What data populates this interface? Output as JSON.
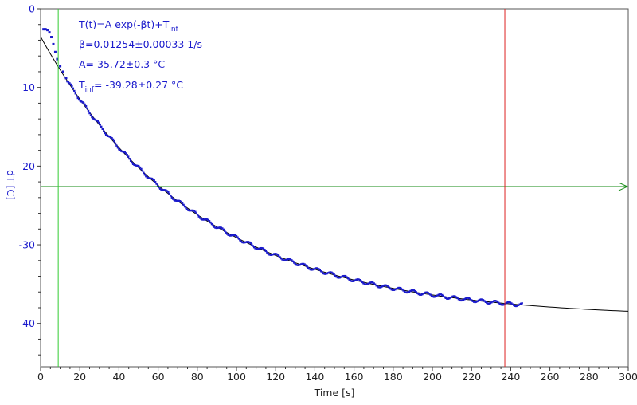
{
  "chart_data": {
    "type": "scatter",
    "xlabel": "Time [s]",
    "ylabel": "dT [C]",
    "xlim": [
      0,
      300
    ],
    "ylim": [
      -45.5,
      0
    ],
    "xticks": [
      0,
      20,
      40,
      60,
      80,
      100,
      120,
      140,
      160,
      180,
      200,
      220,
      240,
      260,
      280,
      300
    ],
    "yticks": [
      0,
      -10,
      -20,
      -30,
      -40
    ],
    "x_tick_labels": [
      "0",
      "20",
      "40",
      "60",
      "80",
      "100",
      "120",
      "140",
      "160",
      "180",
      "200",
      "220",
      "240",
      "260",
      "280",
      "300"
    ],
    "y_tick_labels": [
      "0",
      "-10",
      "-20",
      "-30",
      "-40"
    ],
    "grid": false,
    "fit": {
      "model": "exponential",
      "A": 35.72,
      "beta": 0.01254,
      "T_inf": -39.28,
      "x_range": [
        0,
        300
      ]
    },
    "measured": {
      "x_range": [
        1,
        246
      ],
      "onset_points": [
        [
          1.5,
          -2.6
        ],
        [
          2.5,
          -2.6
        ],
        [
          3.5,
          -2.7
        ],
        [
          4.5,
          -3.0
        ],
        [
          5.5,
          -3.6
        ],
        [
          6.5,
          -4.5
        ],
        [
          7.5,
          -5.5
        ],
        [
          8.5,
          -6.4
        ],
        [
          10.0,
          -7.3
        ],
        [
          11.5,
          -8.0
        ],
        [
          13.0,
          -8.8
        ]
      ]
    },
    "markers": {
      "horizontal_line_y": -22.6,
      "green_vline_x": 9,
      "red_vline_x": 237
    },
    "annotation": {
      "line1_main": "T(t)=A exp(-βt)+T",
      "line1_sub": "inf",
      "line2": "β=0.01254±0.00033 1/s",
      "line3": "A= 35.72±0.3 °C",
      "line4_pre": "T",
      "line4_sub": "inf",
      "line4_post": "= -39.28±0.27 °C"
    },
    "colors": {
      "data": "#1a1acc",
      "fit": "#000000",
      "axis_text": "#1a1acc",
      "hline": "#118811",
      "vline_green": "#33cc33",
      "vline_red": "#dd2222"
    }
  }
}
